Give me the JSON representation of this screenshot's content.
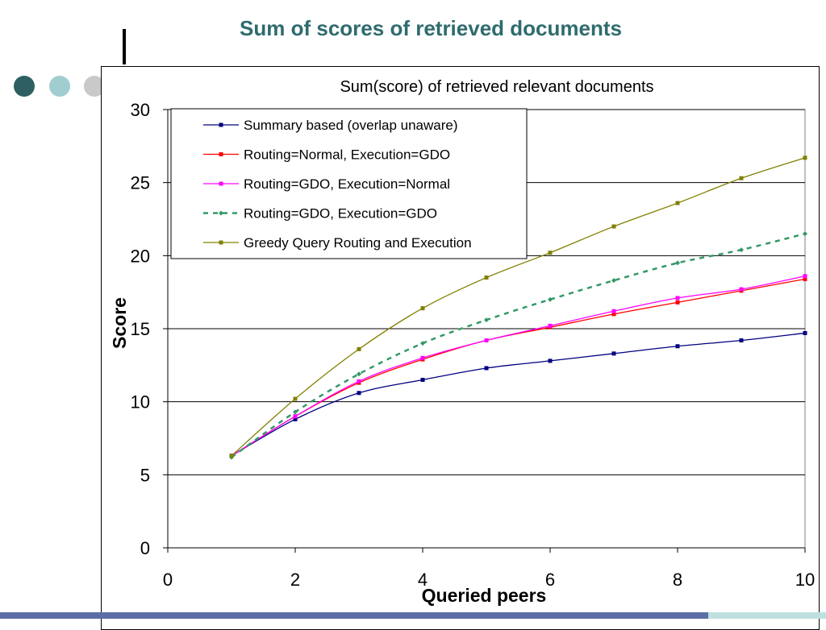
{
  "slide": {
    "title": "Sum of scores of retrieved documents"
  },
  "colors": {
    "title": "#2f6b6e",
    "dot1": "#2e5f63",
    "dot2": "#9fcdd0",
    "dot3": "#c9c9c9",
    "bottom_bar": "#5b6ea6"
  },
  "chart_data": {
    "type": "line",
    "title": "Sum(score) of retrieved relevant documents",
    "xlabel": "Queried peers",
    "ylabel": "Score",
    "xlim": [
      0,
      10
    ],
    "ylim": [
      0,
      30
    ],
    "xticks": [
      0,
      2,
      4,
      6,
      8,
      10
    ],
    "yticks": [
      0,
      5,
      10,
      15,
      20,
      25,
      30
    ],
    "grid": "horizontal",
    "legend_position": "top-left",
    "x": [
      1,
      2,
      3,
      4,
      5,
      6,
      7,
      8,
      9,
      10
    ],
    "series": [
      {
        "name": "Summary based (overlap unaware)",
        "color": "#000080",
        "dashed": false,
        "values": [
          6.3,
          8.8,
          10.6,
          11.5,
          12.3,
          12.8,
          13.3,
          13.8,
          14.2,
          14.7
        ]
      },
      {
        "name": "Routing=Normal, Execution=GDO",
        "color": "#ff0000",
        "dashed": false,
        "values": [
          6.3,
          9.0,
          11.3,
          12.9,
          14.2,
          15.1,
          16.0,
          16.8,
          17.6,
          18.4
        ]
      },
      {
        "name": "Routing=GDO, Execution=Normal",
        "color": "#ff00ff",
        "dashed": false,
        "values": [
          6.3,
          9.0,
          11.4,
          13.0,
          14.2,
          15.2,
          16.2,
          17.1,
          17.7,
          18.6
        ]
      },
      {
        "name": "Routing=GDO, Execution=GDO",
        "color": "#339966",
        "dashed": true,
        "values": [
          6.2,
          9.3,
          11.9,
          14.0,
          15.6,
          17.0,
          18.3,
          19.5,
          20.4,
          21.5
        ]
      },
      {
        "name": "Greedy Query Routing and Execution",
        "color": "#808000",
        "dashed": false,
        "values": [
          6.3,
          10.2,
          13.6,
          16.4,
          18.5,
          20.2,
          22.0,
          23.6,
          25.3,
          26.7
        ]
      }
    ]
  }
}
